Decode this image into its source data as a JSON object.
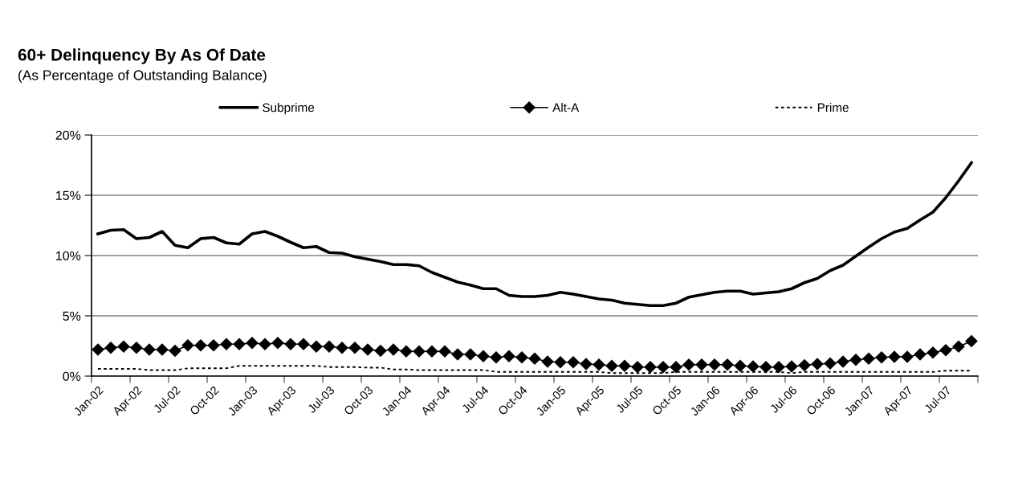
{
  "chart_data": {
    "type": "line",
    "title": "60+ Delinquency By As Of Date",
    "subtitle": "(As Percentage of Outstanding Balance)",
    "categories": [
      "Jan-02",
      null,
      null,
      "Apr-02",
      null,
      null,
      "Jul-02",
      null,
      null,
      "Oct-02",
      null,
      null,
      "Jan-03",
      null,
      null,
      "Apr-03",
      null,
      null,
      "Jul-03",
      null,
      null,
      "Oct-03",
      null,
      null,
      "Jan-04",
      null,
      null,
      "Apr-04",
      null,
      null,
      "Jul-04",
      null,
      null,
      "Oct-04",
      null,
      null,
      "Jan-05",
      null,
      null,
      "Apr-05",
      null,
      null,
      "Jul-05",
      null,
      null,
      "Oct-05",
      null,
      null,
      "Jan-06",
      null,
      null,
      "Apr-06",
      null,
      null,
      "Jul-06",
      null,
      null,
      "Oct-06",
      null,
      null,
      "Jan-07",
      null,
      null,
      "Apr-07",
      null,
      null,
      "Jul-07",
      null,
      null
    ],
    "series": [
      {
        "name": "Subprime",
        "color": "#000000",
        "line_style": "solid",
        "marker": "none",
        "values": [
          11.8,
          12.1,
          12.15,
          11.4,
          11.5,
          12.0,
          10.85,
          10.65,
          11.4,
          11.5,
          11.05,
          10.95,
          11.8,
          12.0,
          11.6,
          11.1,
          10.65,
          10.75,
          10.25,
          10.2,
          9.9,
          9.7,
          9.5,
          9.25,
          9.25,
          9.15,
          8.6,
          8.2,
          7.8,
          7.55,
          7.25,
          7.25,
          6.7,
          6.6,
          6.6,
          6.7,
          6.95,
          6.8,
          6.6,
          6.4,
          6.3,
          6.05,
          5.95,
          5.85,
          5.85,
          6.05,
          6.55,
          6.75,
          6.95,
          7.05,
          7.05,
          6.8,
          6.9,
          7.0,
          7.25,
          7.75,
          8.1,
          8.75,
          9.2,
          9.95,
          10.7,
          11.4,
          11.95,
          12.25,
          12.95,
          13.6,
          14.8,
          16.2,
          17.7
        ]
      },
      {
        "name": "Alt-A",
        "color": "#000000",
        "line_style": "solid",
        "marker": "diamond",
        "values": [
          2.2,
          2.35,
          2.45,
          2.35,
          2.2,
          2.2,
          2.1,
          2.55,
          2.55,
          2.55,
          2.65,
          2.65,
          2.75,
          2.65,
          2.75,
          2.65,
          2.65,
          2.45,
          2.45,
          2.35,
          2.35,
          2.2,
          2.1,
          2.2,
          2.05,
          2.05,
          2.05,
          2.05,
          1.8,
          1.8,
          1.65,
          1.55,
          1.65,
          1.55,
          1.45,
          1.2,
          1.15,
          1.15,
          1.0,
          0.95,
          0.85,
          0.85,
          0.75,
          0.75,
          0.75,
          0.75,
          0.95,
          0.95,
          0.95,
          0.95,
          0.85,
          0.8,
          0.75,
          0.75,
          0.8,
          0.9,
          1.0,
          1.05,
          1.2,
          1.35,
          1.45,
          1.55,
          1.6,
          1.6,
          1.8,
          1.95,
          2.15,
          2.45,
          2.9
        ]
      },
      {
        "name": "Prime",
        "color": "#000000",
        "line_style": "dotted",
        "marker": "none",
        "values": [
          0.6,
          0.6,
          0.6,
          0.6,
          0.5,
          0.5,
          0.5,
          0.65,
          0.65,
          0.65,
          0.65,
          0.85,
          0.85,
          0.85,
          0.85,
          0.85,
          0.85,
          0.85,
          0.75,
          0.75,
          0.75,
          0.7,
          0.7,
          0.55,
          0.55,
          0.5,
          0.5,
          0.5,
          0.5,
          0.5,
          0.5,
          0.35,
          0.35,
          0.35,
          0.35,
          0.35,
          0.35,
          0.35,
          0.35,
          0.35,
          0.25,
          0.25,
          0.25,
          0.25,
          0.25,
          0.35,
          0.35,
          0.35,
          0.35,
          0.35,
          0.35,
          0.35,
          0.35,
          0.35,
          0.25,
          0.35,
          0.35,
          0.35,
          0.35,
          0.35,
          0.35,
          0.35,
          0.35,
          0.35,
          0.35,
          0.35,
          0.45,
          0.45,
          0.45
        ]
      }
    ],
    "ylim": [
      0,
      20
    ],
    "yticks": [
      {
        "value": 0,
        "label": "0%"
      },
      {
        "value": 5,
        "label": "5%"
      },
      {
        "value": 10,
        "label": "10%"
      },
      {
        "value": 15,
        "label": "15%"
      },
      {
        "value": 20,
        "label": "20%"
      }
    ],
    "grid": "y",
    "legend": "top"
  }
}
